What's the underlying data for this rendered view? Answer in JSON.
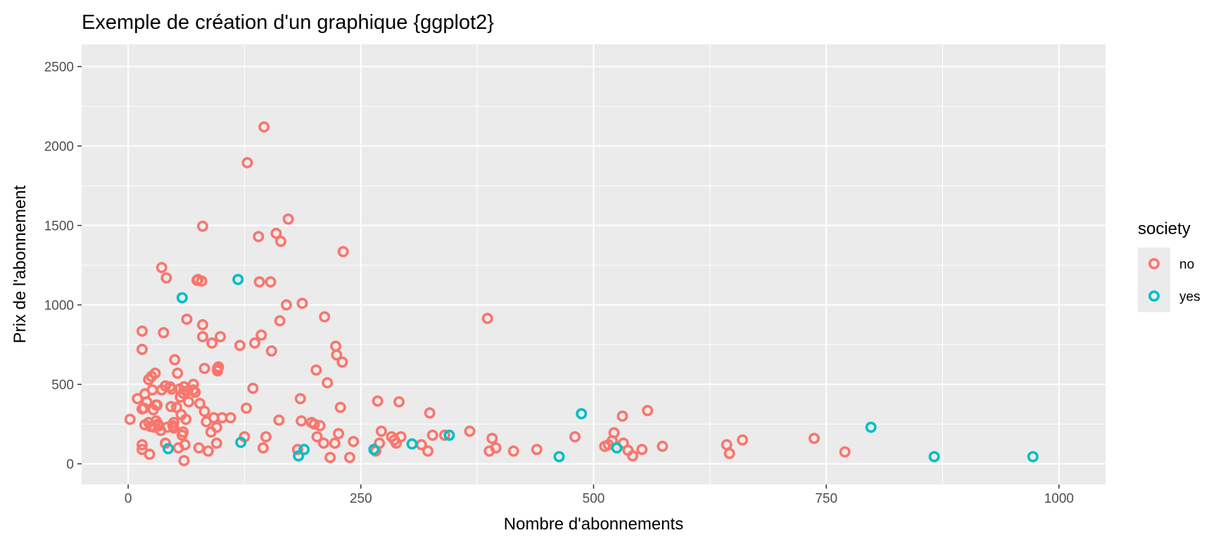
{
  "chart_data": {
    "type": "scatter",
    "title": "Exemple de création d'un graphique {ggplot2}",
    "xlabel": "Nombre d'abonnements",
    "ylabel": "Prix de l'abonnement",
    "xlim": [
      -50,
      1050
    ],
    "ylim": [
      -130,
      2640
    ],
    "x_ticks": [
      0,
      250,
      500,
      750,
      1000
    ],
    "y_ticks": [
      0,
      500,
      1000,
      1500,
      2000,
      2500
    ],
    "x_tick_labels": [
      "0",
      "250",
      "500",
      "750",
      "1000"
    ],
    "y_tick_labels": [
      "0",
      "500",
      "1000",
      "1500",
      "2000",
      "2500"
    ],
    "grid": true,
    "legend": {
      "title": "society",
      "position": "right",
      "entries": [
        {
          "label": "no",
          "color": "#F8766D"
        },
        {
          "label": "yes",
          "color": "#00BFC4"
        }
      ]
    },
    "colors": {
      "no": "#F8766D",
      "yes": "#00BFC4",
      "panel": "#EBEBEB",
      "grid": "#FFFFFF"
    },
    "series": [
      {
        "name": "no",
        "color": "#F8766D",
        "points": [
          [
            2,
            280
          ],
          [
            10,
            410
          ],
          [
            15,
            720
          ],
          [
            15,
            835
          ],
          [
            15,
            120
          ],
          [
            15,
            90
          ],
          [
            15,
            345
          ],
          [
            17,
            350
          ],
          [
            18,
            440
          ],
          [
            18,
            245
          ],
          [
            20,
            390
          ],
          [
            22,
            260
          ],
          [
            22,
            530
          ],
          [
            23,
            60
          ],
          [
            24,
            235
          ],
          [
            25,
            550
          ],
          [
            26,
            465
          ],
          [
            27,
            340
          ],
          [
            28,
            230
          ],
          [
            29,
            570
          ],
          [
            30,
            370
          ],
          [
            30,
            270
          ],
          [
            31,
            370
          ],
          [
            32,
            250
          ],
          [
            33,
            240
          ],
          [
            35,
            210
          ],
          [
            36,
            465
          ],
          [
            36,
            1235
          ],
          [
            38,
            825
          ],
          [
            40,
            490
          ],
          [
            40,
            130
          ],
          [
            41,
            1170
          ],
          [
            42,
            230
          ],
          [
            45,
            485
          ],
          [
            46,
            360
          ],
          [
            47,
            470
          ],
          [
            48,
            240
          ],
          [
            49,
            260
          ],
          [
            49,
            225
          ],
          [
            50,
            655
          ],
          [
            52,
            355
          ],
          [
            53,
            570
          ],
          [
            54,
            100
          ],
          [
            55,
            470
          ],
          [
            56,
            420
          ],
          [
            57,
            310
          ],
          [
            58,
            180
          ],
          [
            59,
            445
          ],
          [
            59,
            200
          ],
          [
            60,
            20
          ],
          [
            60,
            485
          ],
          [
            61,
            120
          ],
          [
            62,
            280
          ],
          [
            63,
            910
          ],
          [
            64,
            460
          ],
          [
            65,
            390
          ],
          [
            70,
            500
          ],
          [
            70,
            465
          ],
          [
            72,
            450
          ],
          [
            74,
            1155
          ],
          [
            75,
            1160
          ],
          [
            76,
            100
          ],
          [
            77,
            380
          ],
          [
            79,
            1150
          ],
          [
            80,
            1495
          ],
          [
            80,
            875
          ],
          [
            80,
            800
          ],
          [
            82,
            600
          ],
          [
            82,
            330
          ],
          [
            84,
            265
          ],
          [
            86,
            80
          ],
          [
            89,
            200
          ],
          [
            90,
            760
          ],
          [
            92,
            290
          ],
          [
            95,
            130
          ],
          [
            95,
            230
          ],
          [
            96,
            585
          ],
          [
            96,
            600
          ],
          [
            97,
            610
          ],
          [
            99,
            800
          ],
          [
            101,
            290
          ],
          [
            110,
            290
          ],
          [
            120,
            745
          ],
          [
            125,
            170
          ],
          [
            127,
            350
          ],
          [
            128,
            1895
          ],
          [
            134,
            475
          ],
          [
            136,
            760
          ],
          [
            140,
            1430
          ],
          [
            141,
            1145
          ],
          [
            143,
            810
          ],
          [
            145,
            100
          ],
          [
            146,
            2120
          ],
          [
            148,
            170
          ],
          [
            153,
            1145
          ],
          [
            154,
            710
          ],
          [
            159,
            1450
          ],
          [
            162,
            275
          ],
          [
            163,
            900
          ],
          [
            164,
            1400
          ],
          [
            170,
            1000
          ],
          [
            172,
            1540
          ],
          [
            182,
            90
          ],
          [
            185,
            410
          ],
          [
            186,
            270
          ],
          [
            187,
            1010
          ],
          [
            197,
            260
          ],
          [
            200,
            250
          ],
          [
            202,
            590
          ],
          [
            203,
            170
          ],
          [
            206,
            240
          ],
          [
            210,
            130
          ],
          [
            211,
            925
          ],
          [
            214,
            510
          ],
          [
            217,
            40
          ],
          [
            222,
            130
          ],
          [
            223,
            740
          ],
          [
            224,
            685
          ],
          [
            226,
            190
          ],
          [
            228,
            355
          ],
          [
            230,
            640
          ],
          [
            231,
            1335
          ],
          [
            238,
            40
          ],
          [
            242,
            140
          ],
          [
            266,
            80
          ],
          [
            268,
            395
          ],
          [
            270,
            130
          ],
          [
            272,
            205
          ],
          [
            283,
            170
          ],
          [
            286,
            150
          ],
          [
            288,
            130
          ],
          [
            291,
            390
          ],
          [
            293,
            170
          ],
          [
            315,
            120
          ],
          [
            322,
            80
          ],
          [
            324,
            320
          ],
          [
            327,
            180
          ],
          [
            340,
            180
          ],
          [
            367,
            205
          ],
          [
            386,
            915
          ],
          [
            388,
            80
          ],
          [
            391,
            160
          ],
          [
            395,
            100
          ],
          [
            414,
            80
          ],
          [
            439,
            90
          ],
          [
            480,
            170
          ],
          [
            512,
            110
          ],
          [
            516,
            120
          ],
          [
            520,
            145
          ],
          [
            522,
            195
          ],
          [
            531,
            300
          ],
          [
            532,
            130
          ],
          [
            537,
            85
          ],
          [
            542,
            50
          ],
          [
            552,
            90
          ],
          [
            558,
            335
          ],
          [
            574,
            110
          ],
          [
            643,
            120
          ],
          [
            646,
            65
          ],
          [
            660,
            150
          ],
          [
            737,
            160
          ],
          [
            770,
            75
          ]
        ]
      },
      {
        "name": "yes",
        "color": "#00BFC4",
        "points": [
          [
            43,
            95
          ],
          [
            58,
            1045
          ],
          [
            118,
            1160
          ],
          [
            121,
            135
          ],
          [
            183,
            50
          ],
          [
            189,
            90
          ],
          [
            264,
            90
          ],
          [
            305,
            125
          ],
          [
            345,
            180
          ],
          [
            463,
            45
          ],
          [
            487,
            315
          ],
          [
            525,
            100
          ],
          [
            798,
            230
          ],
          [
            866,
            45
          ],
          [
            972,
            45
          ]
        ]
      }
    ]
  }
}
